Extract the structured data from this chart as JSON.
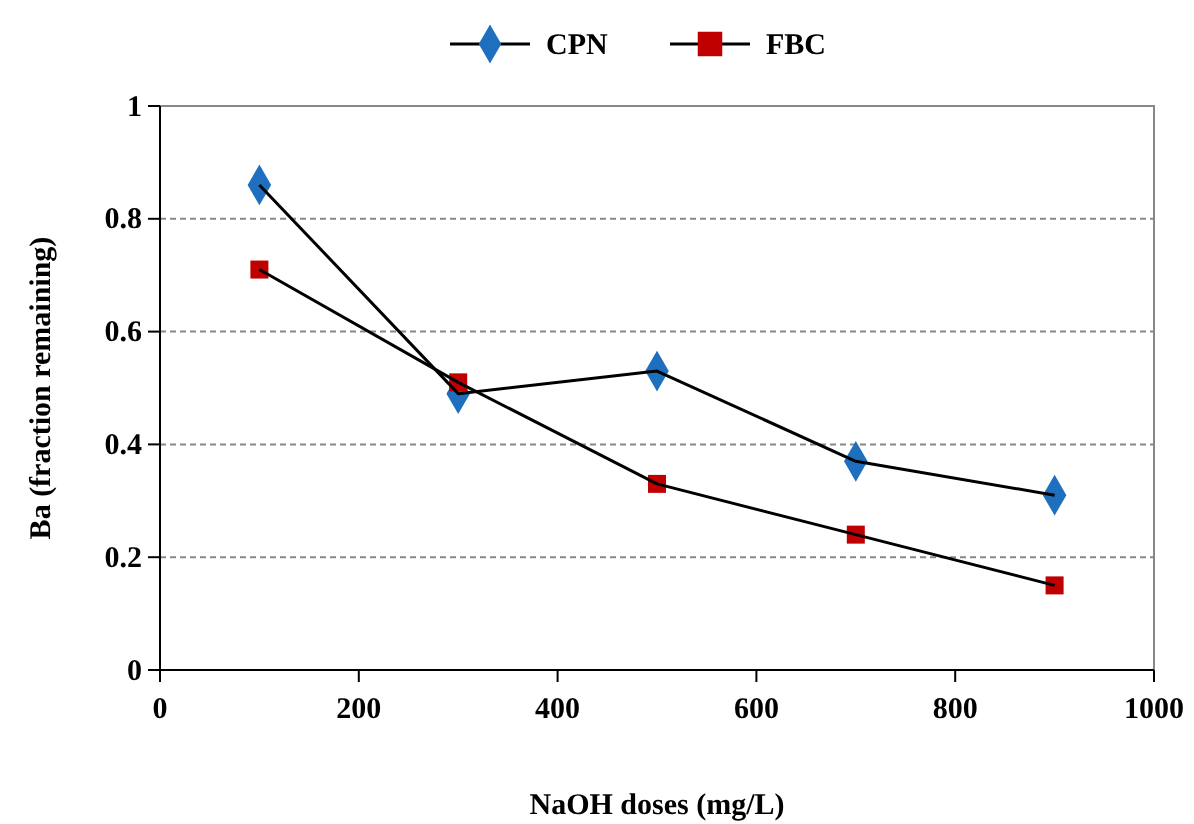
{
  "chart_data": {
    "type": "line",
    "xlabel": "NaOH doses (mg/L)",
    "ylabel": "Ba (fraction remaining)",
    "x": [
      100,
      300,
      500,
      700,
      900
    ],
    "series": [
      {
        "name": "CPN",
        "color": "#1f6fbf",
        "marker": "diamond",
        "values": [
          0.86,
          0.49,
          0.53,
          0.37,
          0.31
        ]
      },
      {
        "name": "FBC",
        "color": "#c00000",
        "marker": "square",
        "values": [
          0.71,
          0.51,
          0.33,
          0.24,
          0.15
        ]
      }
    ],
    "xlim": [
      0,
      1000
    ],
    "xticks": [
      0,
      200,
      400,
      600,
      800,
      1000
    ],
    "ylim": [
      0,
      1
    ],
    "yticks": [
      0,
      0.2,
      0.4,
      0.6,
      0.8,
      1
    ],
    "grid": "y",
    "legend": "top"
  }
}
